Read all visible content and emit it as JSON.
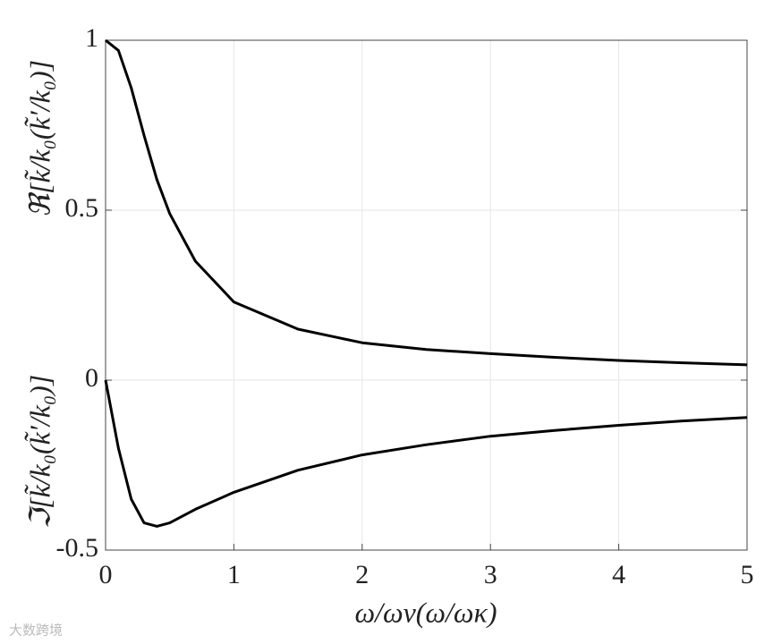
{
  "chart_data": {
    "type": "line",
    "x_label": "ω/ων(ω/ωκ)",
    "y_labels": [
      "ℜ[k̃/k₀(k̃′/k₀)]",
      "ℑ[k̃/k₀(k̃′/k₀)]"
    ],
    "x": [
      0,
      0.1,
      0.2,
      0.3,
      0.4,
      0.5,
      0.7,
      1,
      1.5,
      2,
      2.5,
      3,
      3.5,
      4,
      4.5,
      5
    ],
    "series": [
      {
        "color": "#000000",
        "values": [
          1,
          0.97,
          0.86,
          0.72,
          0.59,
          0.49,
          0.35,
          0.23,
          0.15,
          0.11,
          0.09,
          0.078,
          0.067,
          0.058,
          0.051,
          0.045
        ]
      },
      {
        "color": "#000000",
        "values": [
          0,
          -0.2,
          -0.35,
          -0.42,
          -0.43,
          -0.42,
          -0.38,
          -0.33,
          -0.265,
          -0.22,
          -0.19,
          -0.165,
          -0.148,
          -0.133,
          -0.12,
          -0.11
        ]
      }
    ],
    "xlim": [
      0,
      5
    ],
    "ylim": [
      -0.5,
      1
    ],
    "xticks": [
      0,
      1,
      2,
      3,
      4,
      5
    ],
    "yticks": [
      -0.5,
      0,
      0.5,
      1
    ],
    "grid": true,
    "watermark": "大数跨境"
  }
}
